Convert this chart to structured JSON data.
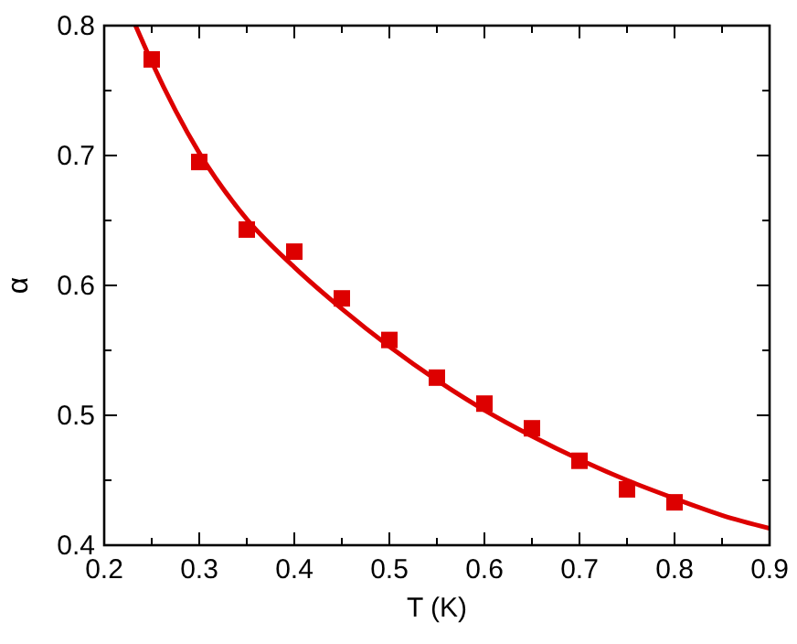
{
  "chart_data": {
    "type": "scatter",
    "xlabel": "T (K)",
    "ylabel": "α",
    "xlim": [
      0.2,
      0.9
    ],
    "ylim": [
      0.4,
      0.8
    ],
    "xticks": [
      0.2,
      {
        "value": 0.25,
        "label": null
      },
      0.3,
      {
        "value": 0.35,
        "label": null
      },
      0.4,
      {
        "value": 0.45,
        "label": null
      },
      0.5,
      {
        "value": 0.55,
        "label": null
      },
      0.6,
      {
        "value": 0.65,
        "label": null
      },
      0.7,
      {
        "value": 0.75,
        "label": null
      },
      0.8,
      {
        "value": 0.85,
        "label": null
      },
      0.9
    ],
    "yticks": [
      0.4,
      {
        "value": 0.45,
        "label": null
      },
      0.5,
      {
        "value": 0.55,
        "label": null
      },
      0.6,
      {
        "value": 0.65,
        "label": null
      },
      0.7,
      {
        "value": 0.75,
        "label": null
      },
      0.8
    ],
    "grid": false,
    "series": [
      {
        "color": "#dd0000",
        "marker": "square",
        "x": [
          0.25,
          0.3,
          0.35,
          0.4,
          0.45,
          0.5,
          0.55,
          0.6,
          0.65,
          0.7,
          0.75,
          0.8
        ],
        "values": [
          0.774,
          0.695,
          0.643,
          0.626,
          0.59,
          0.558,
          0.529,
          0.509,
          0.49,
          0.465,
          0.443,
          0.433
        ]
      },
      {
        "type": "line",
        "color": "#dd0000",
        "line_style": "solid",
        "x": [
          0.233,
          0.25,
          0.3,
          0.35,
          0.4,
          0.45,
          0.5,
          0.55,
          0.6,
          0.65,
          0.7,
          0.75,
          0.8,
          0.85,
          0.9
        ],
        "values": [
          0.8,
          0.772,
          0.702,
          0.651,
          0.614,
          0.582,
          0.553,
          0.527,
          0.504,
          0.484,
          0.466,
          0.45,
          0.436,
          0.423,
          0.413
        ]
      }
    ]
  }
}
